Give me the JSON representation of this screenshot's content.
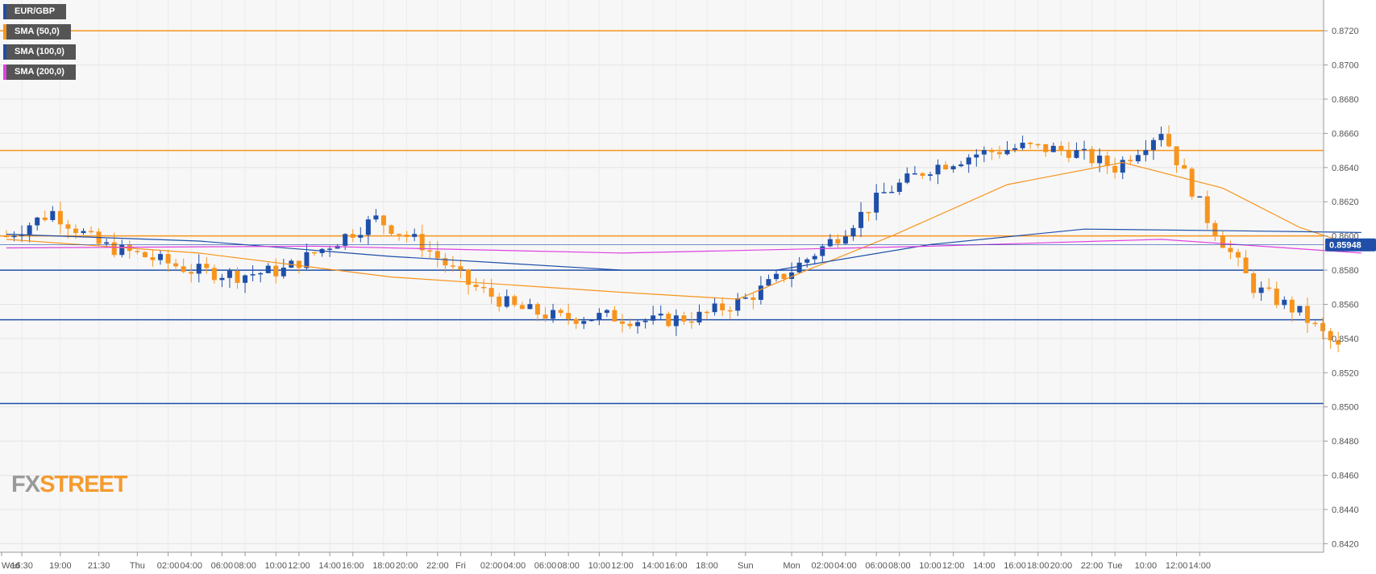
{
  "chart_data": {
    "type": "candlestick",
    "symbol": "EUR/GBP",
    "last_price": "0.85948",
    "ylim": [
      0.8415,
      0.8738
    ],
    "y_ticks": [
      "0.8720",
      "0.8700",
      "0.8680",
      "0.8660",
      "0.8640",
      "0.8620",
      "0.8600",
      "0.8580",
      "0.8560",
      "0.8540",
      "0.8520",
      "0.8500",
      "0.8480",
      "0.8460",
      "0.8440",
      "0.8420"
    ],
    "x_ticks": [
      "Wed",
      "16:30",
      "19:00",
      "21:30",
      "Thu",
      "02:00",
      "04:00",
      "06:00",
      "08:00",
      "10:00",
      "12:00",
      "14:00",
      "16:00",
      "18:00",
      "20:00",
      "22:00",
      "Fri",
      "02:00",
      "04:00",
      "06:00",
      "08:00",
      "10:00",
      "12:00",
      "14:00",
      "16:00",
      "18:00",
      "Sun",
      "Mon",
      "02:00",
      "04:00",
      "06:00",
      "08:00",
      "10:00",
      "12:00",
      "14:00",
      "16:00",
      "18:00",
      "20:00",
      "22:00",
      "Tue",
      "10:00",
      "12:00",
      "14:00"
    ],
    "bar_count": 174,
    "legend": [
      {
        "name": "EUR/GBP",
        "color": "#1f4fa8"
      },
      {
        "name": "SMA (50,0)",
        "color": "#f7941d"
      },
      {
        "name": "SMA (100,0)",
        "color": "#1f4fa8"
      },
      {
        "name": "SMA (200,0)",
        "color": "#e040e0"
      }
    ],
    "horizontal_levels": [
      {
        "value": 0.872,
        "color": "#f7941d"
      },
      {
        "value": 0.865,
        "color": "#f7941d"
      },
      {
        "value": 0.86,
        "color": "#f7941d"
      },
      {
        "value": 0.858,
        "color": "#1f4fa8"
      },
      {
        "value": 0.8551,
        "color": "#1f4fa8"
      },
      {
        "value": 0.8502,
        "color": "#1f4fa8"
      }
    ],
    "close_path": [
      [
        0,
        0.86
      ],
      [
        6,
        0.8614
      ],
      [
        12,
        0.8595
      ],
      [
        18,
        0.8588
      ],
      [
        24,
        0.858
      ],
      [
        30,
        0.8577
      ],
      [
        36,
        0.858
      ],
      [
        42,
        0.8595
      ],
      [
        48,
        0.861
      ],
      [
        54,
        0.8595
      ],
      [
        60,
        0.8572
      ],
      [
        66,
        0.8558
      ],
      [
        72,
        0.8552
      ],
      [
        78,
        0.8553
      ],
      [
        84,
        0.855
      ],
      [
        90,
        0.8553
      ],
      [
        96,
        0.8563
      ],
      [
        102,
        0.858
      ],
      [
        108,
        0.86
      ],
      [
        114,
        0.8625
      ],
      [
        120,
        0.864
      ],
      [
        126,
        0.8648
      ],
      [
        132,
        0.8652
      ],
      [
        138,
        0.865
      ],
      [
        144,
        0.864
      ],
      [
        150,
        0.8662
      ],
      [
        156,
        0.861
      ],
      [
        162,
        0.857
      ],
      [
        168,
        0.8555
      ],
      [
        174,
        0.853
      ],
      [
        180,
        0.851
      ],
      [
        186,
        0.856
      ],
      [
        192,
        0.864
      ],
      [
        198,
        0.8595
      ]
    ],
    "ohlc_seed": 7,
    "sma50": [
      [
        0,
        0.8598
      ],
      [
        25,
        0.859
      ],
      [
        50,
        0.8576
      ],
      [
        80,
        0.8567
      ],
      [
        95,
        0.8563
      ],
      [
        104,
        0.858
      ],
      [
        115,
        0.86
      ],
      [
        130,
        0.863
      ],
      [
        145,
        0.8643
      ],
      [
        158,
        0.8628
      ],
      [
        168,
        0.8605
      ],
      [
        174,
        0.8596
      ],
      [
        176,
        0.8591
      ]
    ],
    "sma100": [
      [
        0,
        0.8601
      ],
      [
        25,
        0.8597
      ],
      [
        50,
        0.8588
      ],
      [
        80,
        0.858
      ],
      [
        100,
        0.858
      ],
      [
        120,
        0.8595
      ],
      [
        140,
        0.8604
      ],
      [
        160,
        0.8603
      ],
      [
        176,
        0.8602
      ]
    ],
    "sma200": [
      [
        0,
        0.8593
      ],
      [
        40,
        0.8594
      ],
      [
        80,
        0.859
      ],
      [
        120,
        0.8594
      ],
      [
        150,
        0.8598
      ],
      [
        176,
        0.859
      ]
    ]
  },
  "logo": {
    "fx": "FX",
    "street": "STREET"
  }
}
